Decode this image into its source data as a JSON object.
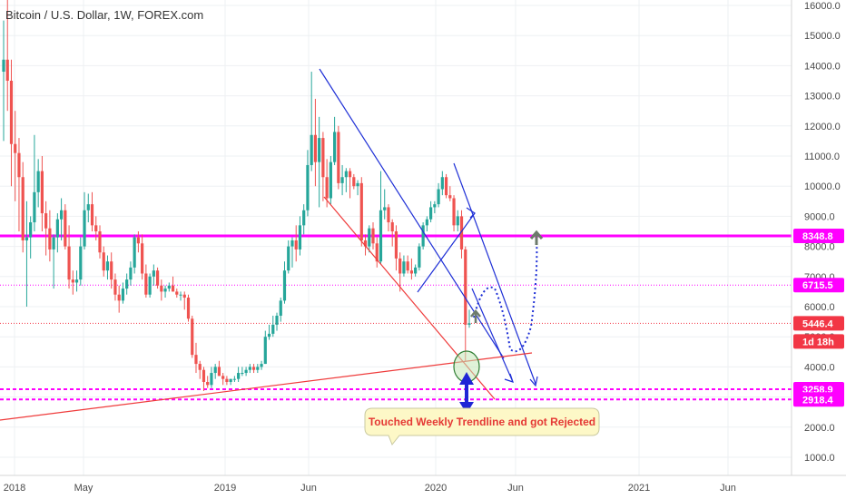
{
  "chart_data": {
    "type": "candlestick",
    "title": "Bitcoin / U.S. Dollar, 1W, FOREX.com",
    "ylim": [
      0,
      16300
    ],
    "y_ticks": [
      1000,
      2000,
      3000,
      4000,
      5000,
      6000,
      7000,
      8000,
      9000,
      10000,
      11000,
      12000,
      13000,
      14000,
      15000,
      16000
    ],
    "y_tick_labels": [
      "1000.0",
      "2000.0",
      "3000.0",
      "4000.0",
      "5000.0",
      "6000.0",
      "7000.0",
      "8000.0",
      "9000.0",
      "10000.0",
      "11000.0",
      "12000.0",
      "13000.0",
      "14000.0",
      "15000.0",
      "16000.0"
    ],
    "x_ticks": [
      "2018",
      "May",
      "2019",
      "Jun",
      "2020",
      "Jun",
      "2021",
      "Jun"
    ],
    "price_levels": [
      {
        "label": "8348.8",
        "value": 8348.8,
        "color": "#ff00ff"
      },
      {
        "label": "6715.5",
        "value": 6715.5,
        "color": "#ff00ff"
      },
      {
        "label": "5446.4",
        "value": 5446.4,
        "color": "#f23645"
      },
      {
        "label": "3258.9",
        "value": 3258.9,
        "color": "#ff00ff"
      },
      {
        "label": "2918.4",
        "value": 2918.4,
        "color": "#ff00ff"
      }
    ],
    "countdown_label": "1d 18h",
    "annotation": "Touched Weekly Trendline and got Rejected",
    "up_color": "#26a69a",
    "down_color": "#ef5350",
    "series": [
      {
        "values": [
          [
            13800,
            15500,
            11500,
            14200
          ],
          [
            14200,
            16200,
            12500,
            13500
          ],
          [
            13500,
            14200,
            10000,
            11400
          ],
          [
            11400,
            12500,
            9500,
            11100
          ],
          [
            11100,
            11600,
            8500,
            10300
          ],
          [
            10300,
            10800,
            7800,
            8200
          ],
          [
            8200,
            9500,
            6000,
            8300
          ],
          [
            8300,
            9000,
            7600,
            8800
          ],
          [
            8800,
            11700,
            8500,
            9800
          ],
          [
            9800,
            10900,
            9300,
            10500
          ],
          [
            10500,
            11000,
            8500,
            9100
          ],
          [
            9100,
            9500,
            7700,
            8600
          ],
          [
            8600,
            9200,
            7500,
            7900
          ],
          [
            7900,
            8400,
            6600,
            8300
          ],
          [
            8300,
            9100,
            7800,
            8900
          ],
          [
            8900,
            9600,
            8200,
            9200
          ],
          [
            9200,
            9400,
            7900,
            8000
          ],
          [
            8000,
            8700,
            6600,
            6900
          ],
          [
            6900,
            7200,
            6400,
            6800
          ],
          [
            6800,
            7200,
            6500,
            6900
          ],
          [
            6900,
            8300,
            6700,
            8000
          ],
          [
            8000,
            9800,
            7900,
            9200
          ],
          [
            9200,
            9750,
            8800,
            9400
          ],
          [
            9400,
            9800,
            8500,
            8700
          ],
          [
            8700,
            9000,
            8200,
            8500
          ],
          [
            8500,
            8700,
            7600,
            7800
          ],
          [
            7800,
            8000,
            7000,
            7200
          ],
          [
            7200,
            7700,
            6900,
            7500
          ],
          [
            7500,
            7800,
            6600,
            6900
          ],
          [
            6900,
            7100,
            6200,
            6400
          ],
          [
            6400,
            6700,
            5800,
            6200
          ],
          [
            6200,
            6800,
            6100,
            6600
          ],
          [
            6600,
            7100,
            6400,
            6900
          ],
          [
            6900,
            7500,
            6700,
            7300
          ],
          [
            7300,
            8400,
            7100,
            8300
          ],
          [
            8300,
            8500,
            7800,
            8100
          ],
          [
            8100,
            8400,
            6900,
            7100
          ],
          [
            7100,
            7400,
            6300,
            6400
          ],
          [
            6400,
            7100,
            6300,
            7000
          ],
          [
            7000,
            7400,
            6700,
            7200
          ],
          [
            7200,
            7300,
            6600,
            6700
          ],
          [
            6700,
            6900,
            6200,
            6500
          ],
          [
            6500,
            6700,
            6300,
            6600
          ],
          [
            6600,
            6800,
            6500,
            6700
          ],
          [
            6700,
            7000,
            6500,
            6500
          ],
          [
            6500,
            6600,
            6300,
            6400
          ],
          [
            6400,
            6500,
            6200,
            6400
          ],
          [
            6400,
            6500,
            5900,
            6300
          ],
          [
            6300,
            6400,
            5500,
            5600
          ],
          [
            5600,
            5700,
            4300,
            4400
          ],
          [
            4400,
            4800,
            3800,
            4100
          ],
          [
            4100,
            4200,
            3600,
            3900
          ],
          [
            3900,
            4000,
            3200,
            3500
          ],
          [
            3500,
            3700,
            3300,
            3400
          ],
          [
            3400,
            4000,
            3300,
            3800
          ],
          [
            3800,
            4100,
            3600,
            4000
          ],
          [
            4000,
            4200,
            3700,
            3700
          ],
          [
            3700,
            3800,
            3400,
            3600
          ],
          [
            3600,
            3700,
            3400,
            3500
          ],
          [
            3500,
            3600,
            3400,
            3600
          ],
          [
            3600,
            3700,
            3500,
            3600
          ],
          [
            3600,
            4000,
            3500,
            3800
          ],
          [
            3800,
            4000,
            3700,
            3800
          ],
          [
            3800,
            4000,
            3700,
            3900
          ],
          [
            3900,
            4100,
            3800,
            4000
          ],
          [
            4000,
            4100,
            3800,
            3900
          ],
          [
            3900,
            4100,
            3800,
            4000
          ],
          [
            4000,
            4200,
            3900,
            4100
          ],
          [
            4100,
            5200,
            4100,
            5000
          ],
          [
            5000,
            5400,
            4900,
            5100
          ],
          [
            5100,
            5700,
            5000,
            5400
          ],
          [
            5400,
            5800,
            5200,
            5700
          ],
          [
            5700,
            6300,
            5500,
            6200
          ],
          [
            6200,
            7500,
            6100,
            7200
          ],
          [
            7200,
            8200,
            7100,
            8000
          ],
          [
            8000,
            8300,
            7300,
            8200
          ],
          [
            8200,
            8700,
            7500,
            7900
          ],
          [
            7900,
            9000,
            7700,
            8700
          ],
          [
            8700,
            9400,
            8400,
            9200
          ],
          [
            9200,
            11200,
            9000,
            10700
          ],
          [
            10700,
            13800,
            10500,
            11700
          ],
          [
            11700,
            12900,
            10000,
            10800
          ],
          [
            10800,
            12300,
            9300,
            11600
          ],
          [
            11600,
            11800,
            9500,
            10300
          ],
          [
            10300,
            10900,
            9300,
            9600
          ],
          [
            9600,
            11000,
            9400,
            10800
          ],
          [
            10800,
            12300,
            10700,
            11800
          ],
          [
            11800,
            12000,
            9900,
            10100
          ],
          [
            10100,
            10700,
            9700,
            10300
          ],
          [
            10300,
            10600,
            9800,
            10500
          ],
          [
            10500,
            10600,
            9600,
            10300
          ],
          [
            10300,
            10400,
            9900,
            10000
          ],
          [
            10000,
            10200,
            9700,
            10100
          ],
          [
            10100,
            10300,
            8000,
            8200
          ],
          [
            8200,
            8400,
            7700,
            8000
          ],
          [
            8000,
            8700,
            7800,
            8600
          ],
          [
            8600,
            8800,
            7900,
            8100
          ],
          [
            8100,
            8300,
            7300,
            7500
          ],
          [
            7500,
            10500,
            7400,
            9200
          ],
          [
            9200,
            9900,
            8900,
            9300
          ],
          [
            9300,
            9400,
            8500,
            8800
          ],
          [
            8800,
            8900,
            8000,
            8500
          ],
          [
            8500,
            8700,
            7200,
            7600
          ],
          [
            7600,
            7800,
            6500,
            7100
          ],
          [
            7100,
            7700,
            7000,
            7500
          ],
          [
            7500,
            7700,
            7100,
            7200
          ],
          [
            7200,
            7600,
            6900,
            7100
          ],
          [
            7100,
            7400,
            7000,
            7300
          ],
          [
            7300,
            8100,
            7200,
            8000
          ],
          [
            8000,
            8800,
            7900,
            8700
          ],
          [
            8700,
            9000,
            8500,
            8900
          ],
          [
            8900,
            9500,
            8800,
            9300
          ],
          [
            9300,
            9500,
            9100,
            9400
          ],
          [
            9400,
            10100,
            9300,
            9900
          ],
          [
            9900,
            10500,
            9700,
            10300
          ],
          [
            10300,
            10400,
            9600,
            9700
          ],
          [
            9700,
            10000,
            9500,
            9600
          ],
          [
            9600,
            9700,
            8500,
            8700
          ],
          [
            8700,
            9200,
            8500,
            9000
          ],
          [
            9000,
            9200,
            7600,
            7900
          ],
          [
            7900,
            8000,
            4200,
            5400
          ],
          [
            5400,
            5900,
            5300,
            5446
          ]
        ]
      }
    ]
  }
}
